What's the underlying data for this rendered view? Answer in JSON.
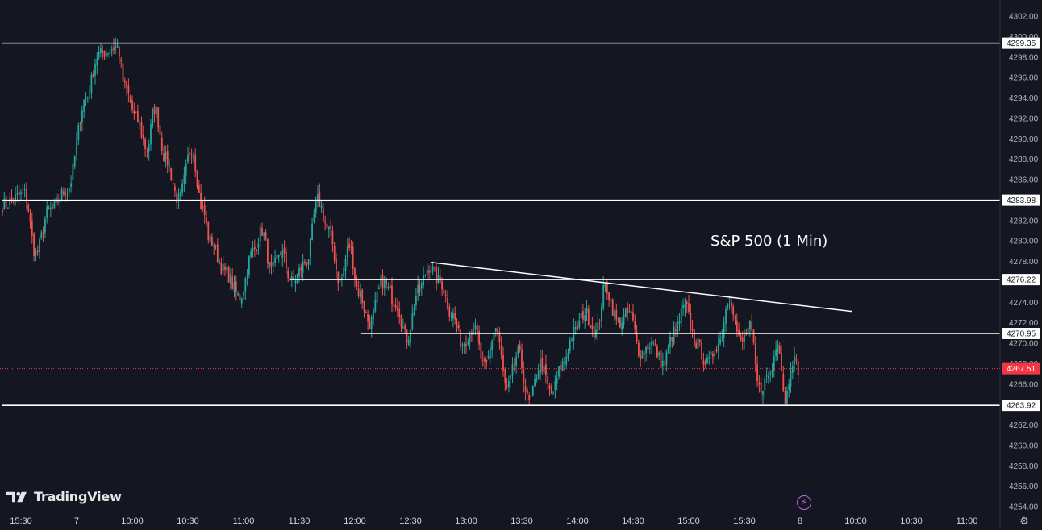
{
  "chart_data": {
    "type": "candlestick",
    "title": "S&P 500 (1 Min)",
    "xlabel": "",
    "ylabel": "",
    "ylim": [
      4253.0,
      4303.0
    ],
    "grid": false,
    "y_ticks": [
      4302.0,
      4300.0,
      4298.0,
      4296.0,
      4294.0,
      4292.0,
      4290.0,
      4288.0,
      4286.0,
      4284.0,
      4282.0,
      4280.0,
      4278.0,
      4276.0,
      4274.0,
      4272.0,
      4270.0,
      4268.0,
      4266.0,
      4264.0,
      4262.0,
      4260.0,
      4258.0,
      4256.0,
      4254.0
    ],
    "y_tick_labels": [
      "4302.00",
      "4300.00",
      "4298.00",
      "4296.00",
      "4294.00",
      "4292.00",
      "4290.00",
      "4288.00",
      "4286.00",
      "4284.00",
      "4282.00",
      "4280.00",
      "4278.00",
      "4276.00",
      "4274.00",
      "4272.00",
      "4270.00",
      "4268.00",
      "4266.00",
      "4264.00",
      "4262.00",
      "4260.00",
      "4258.00",
      "4256.00",
      "4254.00"
    ],
    "x_ticks": [
      "15:30",
      "7",
      "10:00",
      "10:30",
      "11:00",
      "11:30",
      "12:00",
      "12:30",
      "13:00",
      "13:30",
      "14:00",
      "14:30",
      "15:00",
      "15:30",
      "8",
      "10:00",
      "10:30",
      "11:00"
    ],
    "x_tick_index": [
      -30,
      0,
      30,
      60,
      90,
      120,
      150,
      180,
      210,
      240,
      270,
      300,
      330,
      360,
      390,
      420,
      450,
      480
    ],
    "key_points": [
      {
        "bar": -40,
        "price": 4283.5
      },
      {
        "bar": -28,
        "price": 4284.6
      },
      {
        "bar": -22,
        "price": 4278.7
      },
      {
        "bar": -15,
        "price": 4283.0
      },
      {
        "bar": -5,
        "price": 4285.0
      },
      {
        "bar": 5,
        "price": 4294.0
      },
      {
        "bar": 12,
        "price": 4298.3
      },
      {
        "bar": 22,
        "price": 4299.0
      },
      {
        "bar": 26,
        "price": 4295.0
      },
      {
        "bar": 32,
        "price": 4292.0
      },
      {
        "bar": 38,
        "price": 4289.0
      },
      {
        "bar": 42,
        "price": 4293.0
      },
      {
        "bar": 48,
        "price": 4288.0
      },
      {
        "bar": 55,
        "price": 4284.0
      },
      {
        "bar": 62,
        "price": 4289.0
      },
      {
        "bar": 68,
        "price": 4283.0
      },
      {
        "bar": 72,
        "price": 4280.0
      },
      {
        "bar": 80,
        "price": 4277.0
      },
      {
        "bar": 88,
        "price": 4274.5
      },
      {
        "bar": 95,
        "price": 4279.0
      },
      {
        "bar": 100,
        "price": 4281.0
      },
      {
        "bar": 105,
        "price": 4277.0
      },
      {
        "bar": 110,
        "price": 4279.0
      },
      {
        "bar": 116,
        "price": 4276.0
      },
      {
        "bar": 124,
        "price": 4278.0
      },
      {
        "bar": 130,
        "price": 4284.0
      },
      {
        "bar": 136,
        "price": 4281.0
      },
      {
        "bar": 142,
        "price": 4276.0
      },
      {
        "bar": 147,
        "price": 4279.5
      },
      {
        "bar": 152,
        "price": 4275.0
      },
      {
        "bar": 158,
        "price": 4272.0
      },
      {
        "bar": 165,
        "price": 4276.0
      },
      {
        "bar": 172,
        "price": 4274.0
      },
      {
        "bar": 178,
        "price": 4270.5
      },
      {
        "bar": 184,
        "price": 4275.0
      },
      {
        "bar": 190,
        "price": 4277.5
      },
      {
        "bar": 196,
        "price": 4276.0
      },
      {
        "bar": 202,
        "price": 4273.0
      },
      {
        "bar": 208,
        "price": 4270.0
      },
      {
        "bar": 214,
        "price": 4271.5
      },
      {
        "bar": 220,
        "price": 4267.5
      },
      {
        "bar": 226,
        "price": 4271.5
      },
      {
        "bar": 232,
        "price": 4265.5
      },
      {
        "bar": 238,
        "price": 4269.0
      },
      {
        "bar": 244,
        "price": 4264.2
      },
      {
        "bar": 250,
        "price": 4268.0
      },
      {
        "bar": 256,
        "price": 4265.0
      },
      {
        "bar": 262,
        "price": 4268.0
      },
      {
        "bar": 268,
        "price": 4271.0
      },
      {
        "bar": 274,
        "price": 4273.0
      },
      {
        "bar": 280,
        "price": 4271.0
      },
      {
        "bar": 285,
        "price": 4275.5
      },
      {
        "bar": 292,
        "price": 4272.0
      },
      {
        "bar": 298,
        "price": 4273.0
      },
      {
        "bar": 304,
        "price": 4269.0
      },
      {
        "bar": 310,
        "price": 4270.0
      },
      {
        "bar": 316,
        "price": 4268.0
      },
      {
        "bar": 322,
        "price": 4271.0
      },
      {
        "bar": 328,
        "price": 4273.5
      },
      {
        "bar": 334,
        "price": 4270.0
      },
      {
        "bar": 340,
        "price": 4268.0
      },
      {
        "bar": 346,
        "price": 4270.0
      },
      {
        "bar": 352,
        "price": 4274.5
      },
      {
        "bar": 358,
        "price": 4270.0
      },
      {
        "bar": 363,
        "price": 4271.5
      },
      {
        "bar": 368,
        "price": 4265.5
      },
      {
        "bar": 374,
        "price": 4267.0
      },
      {
        "bar": 378,
        "price": 4270.5
      },
      {
        "bar": 382,
        "price": 4264.5
      },
      {
        "bar": 386,
        "price": 4268.5
      },
      {
        "bar": 389,
        "price": 4267.5
      }
    ],
    "horizontal_levels": [
      {
        "price": 4299.35,
        "label": "4299.35",
        "start_bar": -40
      },
      {
        "price": 4283.98,
        "label": "4283.98",
        "start_bar": -40
      },
      {
        "price": 4276.22,
        "label": "4276.22",
        "start_bar": 115
      },
      {
        "price": 4270.95,
        "label": "4270.95",
        "start_bar": 153
      },
      {
        "price": 4263.92,
        "label": "4263.92",
        "start_bar": -40
      }
    ],
    "trendline": {
      "start_bar": 191,
      "start_price": 4277.9,
      "end_bar": 418,
      "end_price": 4273.1
    },
    "last_price": {
      "price": 4267.51,
      "label": "4267.51"
    },
    "colors": {
      "background": "#141722",
      "up": "#26a69a",
      "down": "#ef5350",
      "level_line": "#ffffff",
      "last_price": "#f23645",
      "axis_text": "#b2b5be"
    }
  },
  "branding": {
    "logo_text": "TradingView",
    "logo_icon": "tradingview-logo-icon"
  },
  "controls": {
    "flash_icon": "lightning-icon",
    "settings_icon": "gear-icon",
    "flash_glyph": "⚡",
    "settings_glyph": "⚙"
  }
}
